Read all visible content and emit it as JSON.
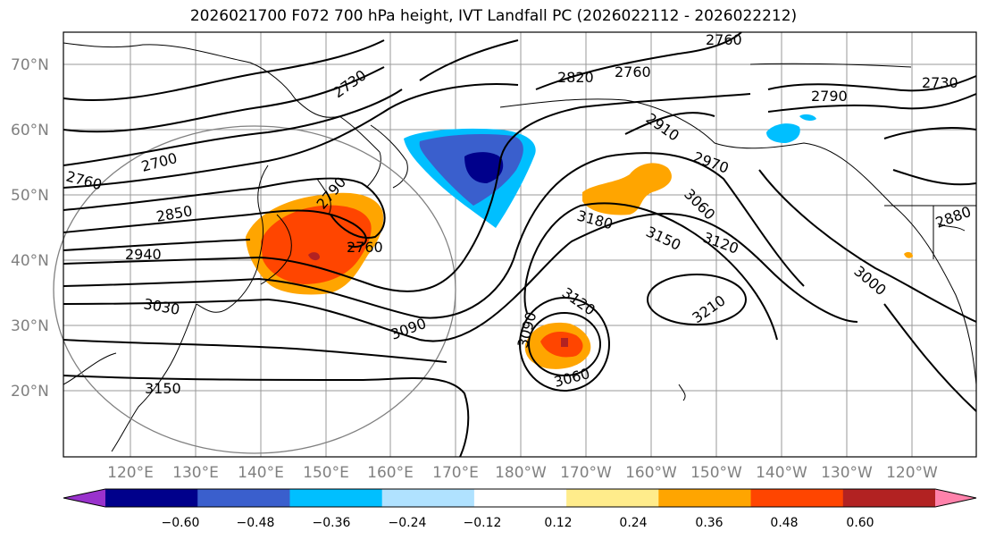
{
  "title": "2026021700 F072 700 hPa height, IVT Landfall PC (2026022112 - 2026022212)",
  "lat_labels": [
    "70°N",
    "60°N",
    "50°N",
    "40°N",
    "30°N",
    "20°N"
  ],
  "lon_labels": [
    "120°E",
    "130°E",
    "140°E",
    "150°E",
    "160°E",
    "170°E",
    "180°W",
    "170°W",
    "160°W",
    "150°W",
    "140°W",
    "130°W",
    "120°W"
  ],
  "contour_labels": [
    "2760",
    "2730",
    "2820",
    "2760",
    "2790",
    "2730",
    "2910",
    "2970",
    "2700",
    "2760",
    "2790",
    "2850",
    "2760",
    "3060",
    "3180",
    "3150",
    "3120",
    "2880",
    "2940",
    "3000",
    "3030",
    "3090",
    "3120",
    "3210",
    "3090",
    "3060",
    "3150"
  ],
  "colorbar": {
    "ticks": [
      "−0.60",
      "−0.48",
      "−0.36",
      "−0.24",
      "−0.12",
      "0.12",
      "0.24",
      "0.36",
      "0.48",
      "0.60"
    ],
    "colors": [
      "#9932cc",
      "#00008b",
      "#3a5fcd",
      "#00bfff",
      "#b0e2ff",
      "#ffffff",
      "#ffec8b",
      "#ffa500",
      "#ff4500",
      "#b22222",
      "#ff82ab"
    ]
  },
  "colors": {
    "grid": "#808080",
    "contour": "#000000",
    "ocean": "#ffffff"
  }
}
